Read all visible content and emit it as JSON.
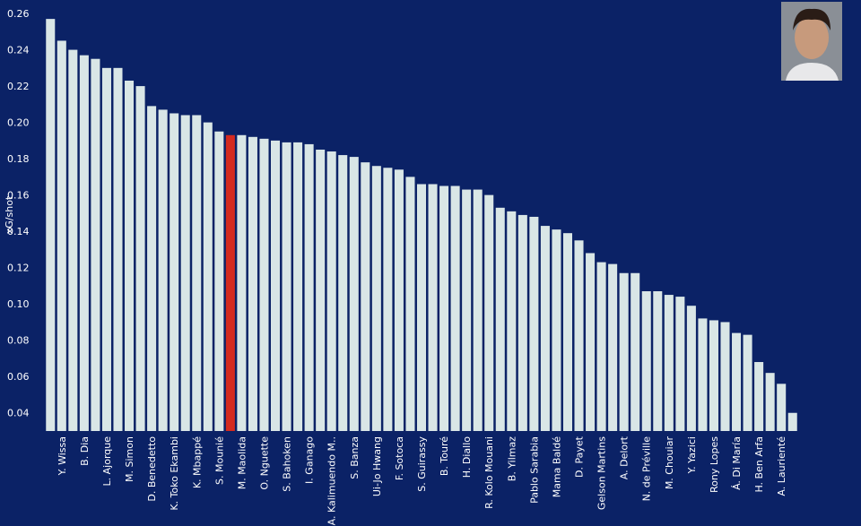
{
  "chart_data": {
    "type": "bar",
    "y_label": "xG/shot",
    "categories": [
      null,
      "Y. Wissa",
      null,
      "B. Dia",
      null,
      "L. Ajorque",
      null,
      "M. Simon",
      null,
      "D. Benedetto",
      null,
      "K. Toko Ekambi",
      null,
      "K. Mbappé",
      null,
      "S. Mounié",
      null,
      "M. Maolida",
      null,
      "O. Nguette",
      null,
      "S. Bahoken",
      null,
      "I. Ganago",
      null,
      "A. Kalimuendo M..",
      null,
      "S. Banza",
      null,
      "Ui-Jo Hwang",
      null,
      "F. Sotoca",
      null,
      "S. Guirassy",
      null,
      "B. Touré",
      null,
      "H. Diallo",
      null,
      "R. Kolo Mouani",
      null,
      "B. Yilmaz",
      null,
      "Pablo Sarabia",
      null,
      "Mama Baldé",
      null,
      "D. Payet",
      null,
      "Gelson Martins",
      null,
      "A. Delort",
      null,
      "N. de Préville",
      null,
      "M. Chouiar",
      null,
      "Y. Yazici",
      null,
      "Rony Lopes",
      null,
      "Á. Di María",
      null,
      "H. Ben Arfa",
      null,
      "A. Laurienté",
      null
    ],
    "values": [
      0.257,
      0.245,
      0.24,
      0.237,
      0.235,
      0.23,
      0.23,
      0.223,
      0.22,
      0.209,
      0.207,
      0.205,
      0.204,
      0.204,
      0.2,
      0.195,
      0.193,
      0.193,
      0.192,
      0.191,
      0.19,
      0.189,
      0.189,
      0.188,
      0.185,
      0.184,
      0.182,
      0.181,
      0.178,
      0.176,
      0.175,
      0.174,
      0.17,
      0.166,
      0.166,
      0.165,
      0.165,
      0.163,
      0.163,
      0.16,
      0.153,
      0.151,
      0.149,
      0.148,
      0.143,
      0.141,
      0.139,
      0.135,
      0.128,
      0.123,
      0.122,
      0.117,
      0.117,
      0.107,
      0.107,
      0.105,
      0.104,
      0.099,
      0.092,
      0.091,
      0.09,
      0.084,
      0.083,
      0.068,
      0.062,
      0.056,
      0.04
    ],
    "colors": [
      "#d9e6e6",
      "#d9e6e6",
      "#d9e6e6",
      "#d9e6e6",
      "#d9e6e6",
      "#d9e6e6",
      "#d9e6e6",
      "#d9e6e6",
      "#d9e6e6",
      "#d9e6e6",
      "#d9e6e6",
      "#d9e6e6",
      "#d9e6e6",
      "#d9e6e6",
      "#d9e6e6",
      "#d9e6e6",
      "#d42a1f",
      "#d9e6e6",
      "#d9e6e6",
      "#d9e6e6",
      "#d9e6e6",
      "#d9e6e6",
      "#d9e6e6",
      "#d9e6e6",
      "#d9e6e6",
      "#d9e6e6",
      "#d9e6e6",
      "#d9e6e6",
      "#d9e6e6",
      "#d9e6e6",
      "#d9e6e6",
      "#d9e6e6",
      "#d9e6e6",
      "#d9e6e6",
      "#d9e6e6",
      "#d9e6e6",
      "#d9e6e6",
      "#d9e6e6",
      "#d9e6e6",
      "#d9e6e6",
      "#d9e6e6",
      "#d9e6e6",
      "#d9e6e6",
      "#d9e6e6",
      "#d9e6e6",
      "#d9e6e6",
      "#d9e6e6",
      "#d9e6e6",
      "#d9e6e6",
      "#d9e6e6",
      "#d9e6e6",
      "#d9e6e6",
      "#d9e6e6",
      "#d9e6e6",
      "#d9e6e6",
      "#d9e6e6",
      "#d9e6e6",
      "#d9e6e6",
      "#d9e6e6",
      "#d9e6e6",
      "#d9e6e6",
      "#d9e6e6",
      "#d9e6e6",
      "#d9e6e6",
      "#d9e6e6",
      "#d9e6e6",
      "#d9e6e6"
    ],
    "ylim": [
      0.03,
      0.262
    ],
    "yticks": [
      {
        "value": 0.04,
        "label": "0.04"
      },
      {
        "value": 0.06,
        "label": "0.06"
      },
      {
        "value": 0.08,
        "label": "0.08"
      },
      {
        "value": 0.1,
        "label": "0.10"
      },
      {
        "value": 0.12,
        "label": "0.12"
      },
      {
        "value": 0.14,
        "label": "0.14"
      },
      {
        "value": 0.16,
        "label": "0.16"
      },
      {
        "value": 0.18,
        "label": "0.18"
      },
      {
        "value": 0.2,
        "label": "0.20"
      },
      {
        "value": 0.22,
        "label": "0.22"
      },
      {
        "value": 0.24,
        "label": "0.24"
      },
      {
        "value": 0.26,
        "label": "0.26"
      }
    ],
    "grid": false
  }
}
